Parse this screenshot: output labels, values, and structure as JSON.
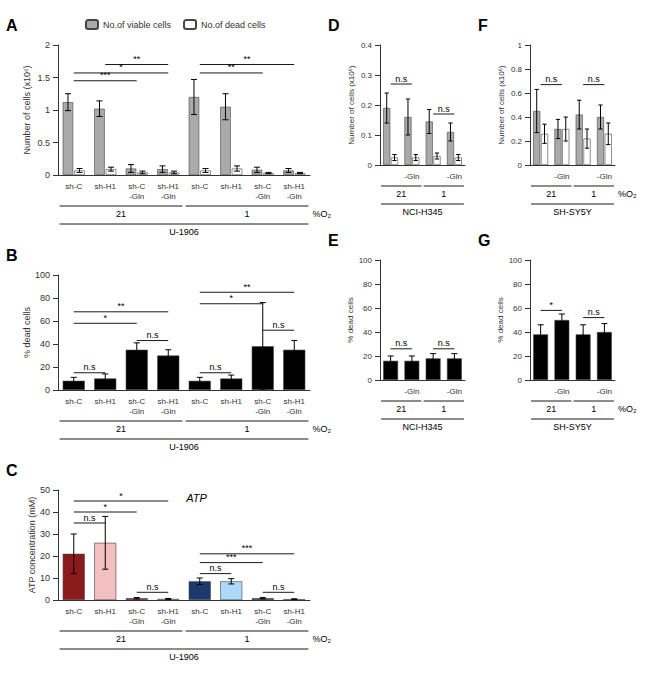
{
  "chart_data": [
    {
      "type": "bar",
      "title": "A",
      "ylabel": "Number of cells (x10⁶)",
      "ylim": [
        0,
        2
      ],
      "yticks": [
        0,
        0.5,
        1,
        1.5,
        2
      ],
      "grid": false,
      "legend": "top",
      "categories": [
        "sh-C",
        "sh-H1",
        "sh-C\n-Gln",
        "sh-H1\n-Gln",
        "sh-C",
        "sh-H1",
        "sh-C\n-Gln",
        "sh-H1\n-Gln"
      ],
      "series": [
        {
          "name": "No.of viable cells",
          "color": "#AAAAAA",
          "values": [
            1.12,
            1.02,
            0.1,
            0.09,
            1.2,
            1.05,
            0.08,
            0.07
          ],
          "errors": [
            0.13,
            0.12,
            0.06,
            0.05,
            0.27,
            0.2,
            0.04,
            0.03
          ]
        },
        {
          "name": "No.of dead cells",
          "color": "#FFFFFF",
          "values": [
            0.07,
            0.09,
            0.04,
            0.04,
            0.07,
            0.1,
            0.03,
            0.03
          ],
          "errors": [
            0.03,
            0.03,
            0.02,
            0.02,
            0.03,
            0.04,
            0.01,
            0.01
          ]
        }
      ],
      "group_labels": [
        "21",
        "1"
      ],
      "group_title": "U-1906",
      "group_unit": "%O₂",
      "annotations": [
        {
          "text": "***",
          "from": 0,
          "to": 2,
          "y": 1.45
        },
        {
          "text": "*",
          "from": 0,
          "to": 3,
          "y": 1.57
        },
        {
          "text": "**",
          "from": 1,
          "to": 3,
          "y": 1.7
        },
        {
          "text": "**",
          "from": 4,
          "to": 6,
          "y": 1.57
        },
        {
          "text": "**",
          "from": 4,
          "to": 7,
          "y": 1.7
        }
      ]
    },
    {
      "type": "bar",
      "title": "B",
      "ylabel": "% dead cells",
      "ylim": [
        0,
        100
      ],
      "yticks": [
        0,
        20,
        40,
        60,
        80,
        100
      ],
      "grid": false,
      "categories": [
        "sh-C",
        "sh-H1",
        "sh-C\n-Gln",
        "sh-H1\n-Gln",
        "sh-C",
        "sh-H1",
        "sh-C\n-Gln",
        "sh-H1\n-Gln"
      ],
      "color": "#000000",
      "values": [
        8,
        10,
        35,
        30,
        8,
        10,
        38,
        35
      ],
      "errors": [
        3,
        4,
        6,
        5,
        3,
        3,
        38,
        8
      ],
      "group_labels": [
        "21",
        "1"
      ],
      "group_title": "U-1906",
      "group_unit": "%O₂",
      "annotations": [
        {
          "text": "n.s",
          "from": 0,
          "to": 1,
          "y": 15
        },
        {
          "text": "*",
          "from": 0,
          "to": 2,
          "y": 58
        },
        {
          "text": "**",
          "from": 0,
          "to": 3,
          "y": 68
        },
        {
          "text": "n.s",
          "from": 2,
          "to": 3,
          "y": 43
        },
        {
          "text": "n.s",
          "from": 4,
          "to": 5,
          "y": 15
        },
        {
          "text": "*",
          "from": 4,
          "to": 6,
          "y": 75
        },
        {
          "text": "**",
          "from": 4,
          "to": 7,
          "y": 85
        },
        {
          "text": "n.s",
          "from": 6,
          "to": 7,
          "y": 52
        }
      ]
    },
    {
      "type": "bar",
      "title": "C",
      "ylabel": "ATP concentration (mM)",
      "ylim": [
        0,
        50
      ],
      "yticks": [
        0,
        10,
        20,
        30,
        40,
        50
      ],
      "grid": false,
      "categories": [
        "sh-C",
        "sh-H1",
        "sh-C\n-Gln",
        "sh-H1\n-Gln",
        "sh-C",
        "sh-H1",
        "sh-C\n-Gln",
        "sh-H1\n-Gln"
      ],
      "colors": [
        "#8B1A1A",
        "#F4BFBF",
        "#8B1A1A",
        "#F4BFBF",
        "#1B3A6B",
        "#ADD8F7",
        "#1B3A6B",
        "#ADD8F7"
      ],
      "values": [
        21,
        26,
        0.8,
        0.5,
        8.5,
        8.5,
        0.8,
        0.4
      ],
      "errors": [
        9,
        12,
        0.3,
        0.2,
        1.5,
        1.2,
        0.3,
        0.15
      ],
      "group_labels": [
        "21",
        "1"
      ],
      "group_title": "U-1906",
      "group_unit": "%O₂",
      "annotations": [
        {
          "text": "ATP"
        },
        {
          "text": "n.s",
          "from": 0,
          "to": 1,
          "y": 35
        },
        {
          "text": "*",
          "from": 0,
          "to": 2,
          "y": 40
        },
        {
          "text": "*",
          "from": 0,
          "to": 3,
          "y": 45
        },
        {
          "text": "n.s",
          "from": 2,
          "to": 3,
          "y": 3.5
        },
        {
          "text": "n.s",
          "from": 4,
          "to": 5,
          "y": 12
        },
        {
          "text": "***",
          "from": 4,
          "to": 6,
          "y": 17
        },
        {
          "text": "***",
          "from": 4,
          "to": 7,
          "y": 21
        },
        {
          "text": "n.s",
          "from": 6,
          "to": 7,
          "y": 3.5
        }
      ]
    },
    {
      "type": "bar",
      "title": "D",
      "ylabel": "Number of cells (x10⁶)",
      "ylim": [
        0,
        0.4
      ],
      "yticks": [
        0,
        0.1,
        0.2,
        0.3,
        0.4
      ],
      "grid": false,
      "categories": [
        null,
        "-Gln",
        null,
        "-Gln"
      ],
      "series": [
        {
          "color": "#AAAAAA",
          "values": [
            0.19,
            0.16,
            0.145,
            0.11
          ],
          "errors": [
            0.05,
            0.06,
            0.04,
            0.03
          ]
        },
        {
          "color": "#FFFFFF",
          "values": [
            0.025,
            0.025,
            0.03,
            0.025
          ],
          "errors": [
            0.01,
            0.01,
            0.01,
            0.01
          ]
        }
      ],
      "group_labels": [
        "21",
        "1"
      ],
      "group_title": "NCI-H345",
      "annotations": [
        {
          "text": "n.s",
          "from": 0,
          "to": 1,
          "y": 0.27
        },
        {
          "text": "n.s",
          "from": 2,
          "to": 3,
          "y": 0.17
        }
      ]
    },
    {
      "type": "bar",
      "title": "E",
      "ylabel": "% dead cells",
      "ylim": [
        0,
        100
      ],
      "yticks": [
        0,
        20,
        40,
        60,
        80,
        100
      ],
      "grid": false,
      "categories": [
        null,
        "-Gln",
        null,
        "-Gln"
      ],
      "color": "#000000",
      "values": [
        16,
        16,
        18,
        18
      ],
      "errors": [
        4,
        4,
        4,
        4
      ],
      "group_labels": [
        "21",
        "1"
      ],
      "group_title": "NCI-H345",
      "annotations": [
        {
          "text": "n.s",
          "from": 0,
          "to": 1,
          "y": 26
        },
        {
          "text": "n.s",
          "from": 2,
          "to": 3,
          "y": 26
        }
      ]
    },
    {
      "type": "bar",
      "title": "F",
      "ylabel": "Number of cells (x10⁶)",
      "ylim": [
        0,
        1
      ],
      "yticks": [
        0,
        0.2,
        0.4,
        0.6,
        0.8,
        1
      ],
      "grid": false,
      "categories": [
        null,
        "-Gln",
        null,
        "-Gln"
      ],
      "series": [
        {
          "color": "#AAAAAA",
          "values": [
            0.45,
            0.3,
            0.42,
            0.4
          ],
          "errors": [
            0.18,
            0.08,
            0.12,
            0.1
          ]
        },
        {
          "color": "#FFFFFF",
          "values": [
            0.26,
            0.3,
            0.22,
            0.26
          ],
          "errors": [
            0.08,
            0.1,
            0.08,
            0.09
          ]
        }
      ],
      "group_labels": [
        "21",
        "1"
      ],
      "group_title": "SH-SY5Y",
      "group_unit": "%O₂",
      "annotations": [
        {
          "text": "n.s",
          "from": 0,
          "to": 1,
          "y": 0.67
        },
        {
          "text": "n.s",
          "from": 2,
          "to": 3,
          "y": 0.67
        }
      ]
    },
    {
      "type": "bar",
      "title": "G",
      "ylabel": "% dead cells",
      "ylim": [
        0,
        100
      ],
      "yticks": [
        0,
        20,
        40,
        60,
        80,
        100
      ],
      "grid": false,
      "categories": [
        null,
        "-Gln",
        null,
        "-Gln"
      ],
      "color": "#000000",
      "values": [
        38,
        50,
        38,
        40
      ],
      "errors": [
        8,
        5,
        8,
        7
      ],
      "group_labels": [
        "21",
        "1"
      ],
      "group_title": "SH-SY5Y",
      "group_unit": "%O₂",
      "annotations": [
        {
          "text": "*",
          "from": 0,
          "to": 1,
          "y": 58
        },
        {
          "text": "n.s",
          "from": 2,
          "to": 3,
          "y": 52
        }
      ]
    }
  ]
}
